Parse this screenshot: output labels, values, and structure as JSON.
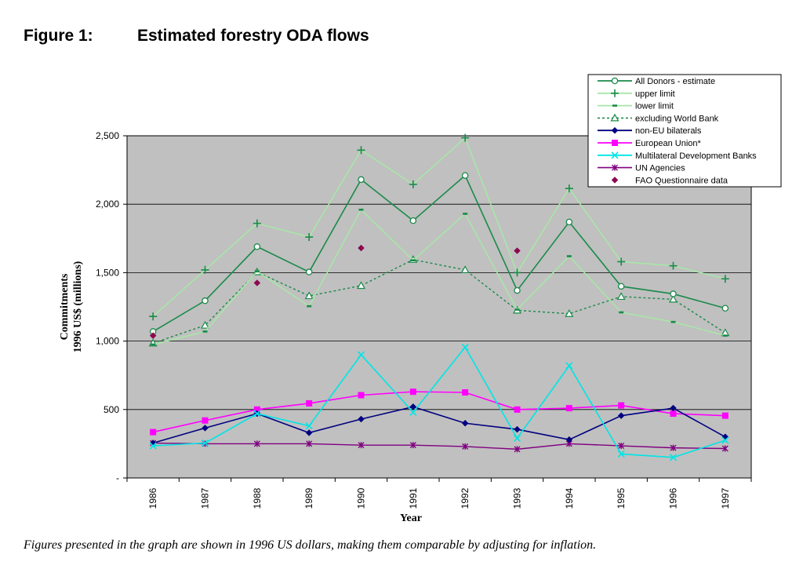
{
  "figure": {
    "number": "Figure 1:",
    "title": "Estimated forestry ODA flows",
    "caption": "Figures presented in the graph are shown in 1996 US dollars, making them comparable by adjusting for inflation."
  },
  "chart_data": {
    "type": "line",
    "xlabel": "Year",
    "ylabel_lines": [
      "Commitments",
      "1996 US$ (millions)"
    ],
    "ylim": [
      0,
      2500
    ],
    "yticks": [
      {
        "value": 0,
        "label": "-"
      },
      {
        "value": 500,
        "label": "500"
      },
      {
        "value": 1000,
        "label": "1,000"
      },
      {
        "value": 1500,
        "label": "1,500"
      },
      {
        "value": 2000,
        "label": "2,000"
      },
      {
        "value": 2500,
        "label": "2,500"
      }
    ],
    "grid": true,
    "legend_position": "top-right",
    "background": "#c0c0c0",
    "categories": [
      "1986",
      "1987",
      "1988",
      "1989",
      "1990",
      "1991",
      "1992",
      "1993",
      "1994",
      "1995",
      "1996",
      "1997"
    ],
    "series": [
      {
        "name": "All Donors - estimate",
        "color": "#1a8a4a",
        "marker": "circle-open",
        "dash": "solid",
        "width": 1.6,
        "values": [
          1070,
          1295,
          1690,
          1505,
          2180,
          1880,
          2210,
          1370,
          1870,
          1400,
          1345,
          1240
        ]
      },
      {
        "name": "upper limit",
        "color": "#a8e6a8",
        "marker": "plus",
        "marker_color": "#1a8a4a",
        "dash": "solid",
        "width": 1.6,
        "values": [
          1180,
          1520,
          1860,
          1760,
          2395,
          2145,
          2485,
          1500,
          2115,
          1580,
          1550,
          1455
        ]
      },
      {
        "name": "lower limit",
        "color": "#a8e6a8",
        "marker": "dash",
        "marker_color": "#1a8a4a",
        "dash": "solid",
        "width": 1.6,
        "values": [
          975,
          1070,
          1510,
          1255,
          1960,
          1590,
          1930,
          1230,
          1620,
          1210,
          1140,
          1040
        ]
      },
      {
        "name": "excluding World Bank",
        "color": "#1a8a4a",
        "marker": "triangle-open",
        "dash": "dotted",
        "width": 1.4,
        "values": [
          985,
          1115,
          1505,
          1330,
          1405,
          1595,
          1520,
          1225,
          1200,
          1325,
          1305,
          1060
        ]
      },
      {
        "name": "non-EU bilaterals",
        "color": "#000080",
        "marker": "diamond",
        "dash": "solid",
        "width": 1.6,
        "values": [
          255,
          365,
          470,
          330,
          430,
          520,
          400,
          355,
          280,
          455,
          510,
          300
        ]
      },
      {
        "name": "European Union*",
        "color": "#ff00ff",
        "marker": "square",
        "dash": "solid",
        "width": 1.6,
        "values": [
          335,
          420,
          500,
          545,
          605,
          630,
          625,
          500,
          510,
          530,
          470,
          455
        ]
      },
      {
        "name": "Multilateral Development Banks",
        "color": "#00e5e5",
        "marker": "x",
        "dash": "solid",
        "width": 1.6,
        "values": [
          235,
          255,
          470,
          380,
          900,
          480,
          955,
          290,
          820,
          175,
          150,
          275
        ]
      },
      {
        "name": "UN Agencies",
        "color": "#800080",
        "marker": "star",
        "dash": "solid",
        "width": 1.4,
        "values": [
          255,
          250,
          250,
          250,
          240,
          240,
          230,
          210,
          250,
          235,
          220,
          215
        ]
      },
      {
        "name": "FAO Questionnaire data",
        "color": "#8b0a50",
        "marker": "diamond",
        "dash": "none",
        "width": 0,
        "values": [
          1040,
          null,
          1425,
          null,
          1680,
          null,
          null,
          1660,
          null,
          null,
          null,
          null
        ]
      }
    ]
  }
}
